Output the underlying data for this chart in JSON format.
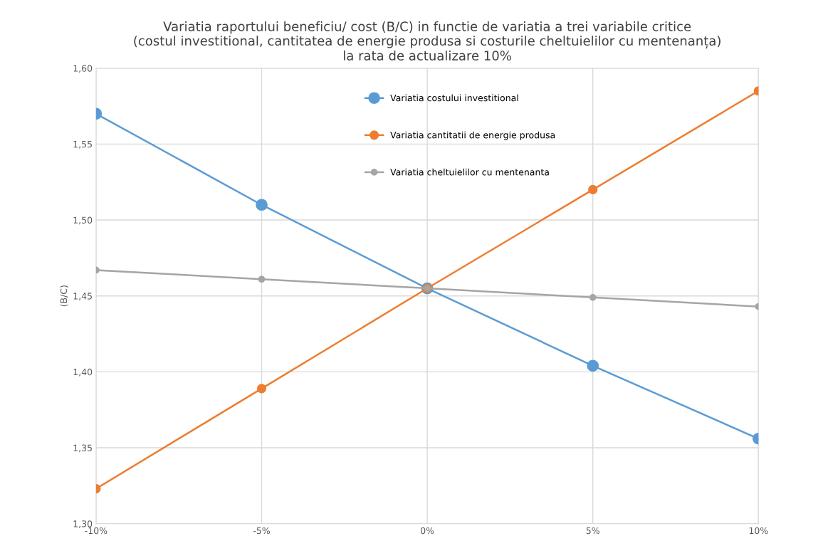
{
  "chart_data": {
    "type": "line",
    "title": "Variatia raportului beneficiu/ cost (B/C) in functie de variatia a trei variabile critice\n(costul investitional, cantitatea de energie produsa si costurile cheltuielilor cu mentenanța)\nla rata de actualizare 10%",
    "ylabel": "(B/C)",
    "x": [
      -10,
      -5,
      0,
      5,
      10
    ],
    "series": [
      {
        "name": "Variatia costului investitional",
        "color": "#5b9bd5",
        "values": [
          1.57,
          1.51,
          1.455,
          1.404,
          1.356
        ]
      },
      {
        "name": "Variatia cantitatii de energie produsa",
        "color": "#ed7d31",
        "values": [
          1.323,
          1.389,
          1.455,
          1.52,
          1.585
        ]
      },
      {
        "name": "Variatia cheltuielilor cu mentenanta",
        "color": "#a5a5a5",
        "values": [
          1.467,
          1.461,
          1.455,
          1.449,
          1.443
        ]
      }
    ],
    "xlim": [
      -10,
      10
    ],
    "xticks": [
      {
        "value": -10,
        "label": "-10%"
      },
      {
        "value": -5,
        "label": "-5%"
      },
      {
        "value": 0,
        "label": "0%"
      },
      {
        "value": 5,
        "label": "5%"
      },
      {
        "value": 10,
        "label": "10%"
      }
    ],
    "ylim": [
      1.3,
      1.6
    ],
    "yticks": [
      {
        "value": 1.3,
        "label": "1,30"
      },
      {
        "value": 1.35,
        "label": "1,35"
      },
      {
        "value": 1.4,
        "label": "1,40"
      },
      {
        "value": 1.45,
        "label": "1,45"
      },
      {
        "value": 1.5,
        "label": "1,50"
      },
      {
        "value": 1.55,
        "label": "1,55"
      },
      {
        "value": 1.6,
        "label": "1,60"
      }
    ],
    "grid": true,
    "legend": "top",
    "marker": "circle",
    "line_style": "solid"
  }
}
